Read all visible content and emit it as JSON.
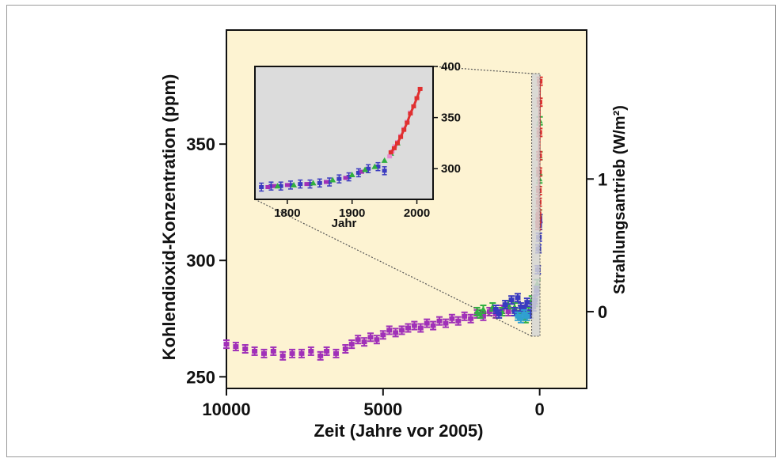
{
  "chart_data": {
    "type": "scatter",
    "main": {
      "xlabel": "Zeit (Jahre vor 2005)",
      "ylabel_left": "Kohlendioxid-Konzentration (ppm)",
      "ylabel_right": "Strahlungsantrieb (W/m²)",
      "xlim": [
        10000,
        -1500
      ],
      "ylim": [
        245,
        399
      ],
      "x_ticks": [
        10000,
        5000,
        0
      ],
      "x_tick_labels": [
        "10000",
        "5000",
        "0"
      ],
      "y_ticks": [
        250,
        300,
        350
      ],
      "y_tick_labels": [
        "250",
        "300",
        "350"
      ],
      "right_ticks": [
        0,
        1
      ],
      "right_tick_labels": [
        "0",
        "1"
      ],
      "right_tick_ppm": [
        278,
        335
      ],
      "background": "#fdf3d2",
      "series": [
        {
          "color": "#a030b8",
          "x": [
            10000,
            9700,
            9400,
            9100,
            8800,
            8500,
            8200,
            7900,
            7600,
            7300,
            7000,
            6800,
            6500,
            6200,
            6000,
            5800,
            5600,
            5400,
            5200,
            5000,
            4800,
            4600,
            4400,
            4200,
            4000,
            3800,
            3600,
            3400,
            3200,
            3000,
            2800,
            2600,
            2400,
            2200,
            2000,
            1800,
            1600,
            1400,
            1200,
            1000
          ],
          "y": [
            264,
            263,
            262,
            261,
            260,
            261,
            259,
            260,
            260,
            261,
            259,
            261,
            260,
            262,
            264,
            266,
            265,
            267,
            266,
            268,
            270,
            269,
            270,
            271,
            272,
            271,
            273,
            272,
            274,
            273,
            275,
            274,
            276,
            275,
            277,
            276,
            278,
            277,
            279,
            278
          ]
        },
        {
          "color": "#30b040",
          "x": [
            2000,
            1900,
            1800,
            1500,
            1200,
            1000,
            800,
            600,
            450,
            350,
            250,
            150,
            80,
            40,
            20,
            10,
            5,
            0
          ],
          "y": [
            278,
            277,
            279,
            280,
            278,
            281,
            280,
            279,
            275,
            278,
            283,
            282,
            290,
            305,
            320,
            335,
            345,
            360
          ]
        },
        {
          "color": "#3a3ac0",
          "x": [
            1400,
            1300,
            1100,
            900,
            800,
            700,
            600,
            500,
            400,
            300,
            200,
            150,
            100,
            60,
            40,
            25,
            15,
            5
          ],
          "y": [
            279,
            277,
            281,
            283,
            278,
            284,
            280,
            279,
            282,
            277,
            280,
            283,
            287,
            296,
            305,
            310,
            315,
            318
          ]
        },
        {
          "color": "#30a0d0",
          "x": [
            700,
            600,
            500,
            400
          ],
          "y": [
            276,
            275,
            277,
            276
          ]
        },
        {
          "color": "#e03030",
          "x": [
            47,
            40,
            35,
            30,
            25,
            20,
            15,
            10,
            5,
            0
          ],
          "y": [
            315,
            318,
            320,
            325,
            330,
            338,
            345,
            355,
            368,
            377
          ]
        }
      ]
    },
    "inset": {
      "xlabel": "Jahr",
      "xlim": [
        1750,
        2025
      ],
      "ylim": [
        270,
        400
      ],
      "x_ticks": [
        1800,
        1900,
        2000
      ],
      "x_tick_labels": [
        "1800",
        "1900",
        "2000"
      ],
      "y_ticks": [
        300,
        350,
        400
      ],
      "y_tick_labels": [
        "300",
        "350",
        "400"
      ],
      "background": "#dcdcdc",
      "series": [
        {
          "color": "#3a3ac0",
          "x": [
            1760,
            1775,
            1790,
            1805,
            1820,
            1835,
            1850,
            1865,
            1880,
            1895,
            1910,
            1925,
            1940,
            1950
          ],
          "y": [
            282,
            283,
            283,
            284,
            285,
            285,
            286,
            287,
            290,
            292,
            296,
            300,
            302,
            298
          ]
        },
        {
          "color": "#a030b8",
          "x": [
            1770,
            1780,
            1800,
            1830,
            1860,
            1890,
            1915
          ],
          "y": [
            282,
            283,
            284,
            285,
            287,
            291,
            297
          ]
        },
        {
          "color": "#30b040",
          "x": [
            1785,
            1810,
            1840,
            1870,
            1900,
            1920,
            1935,
            1950,
            1960,
            1970
          ],
          "y": [
            283,
            284,
            286,
            289,
            294,
            299,
            302,
            308,
            315,
            325
          ]
        },
        {
          "color": "#e88bd0",
          "x": [
            1958,
            1962,
            1966,
            1970,
            1975,
            1980,
            1985,
            1990
          ],
          "y": [
            312,
            317,
            322,
            326,
            332,
            339,
            346,
            355
          ]
        },
        {
          "color": "#e03030",
          "x": [
            1960,
            1965,
            1970,
            1975,
            1980,
            1985,
            1990,
            1995,
            2000,
            2005
          ],
          "y": [
            316,
            320,
            325,
            331,
            338,
            345,
            354,
            361,
            369,
            378
          ]
        }
      ]
    }
  }
}
